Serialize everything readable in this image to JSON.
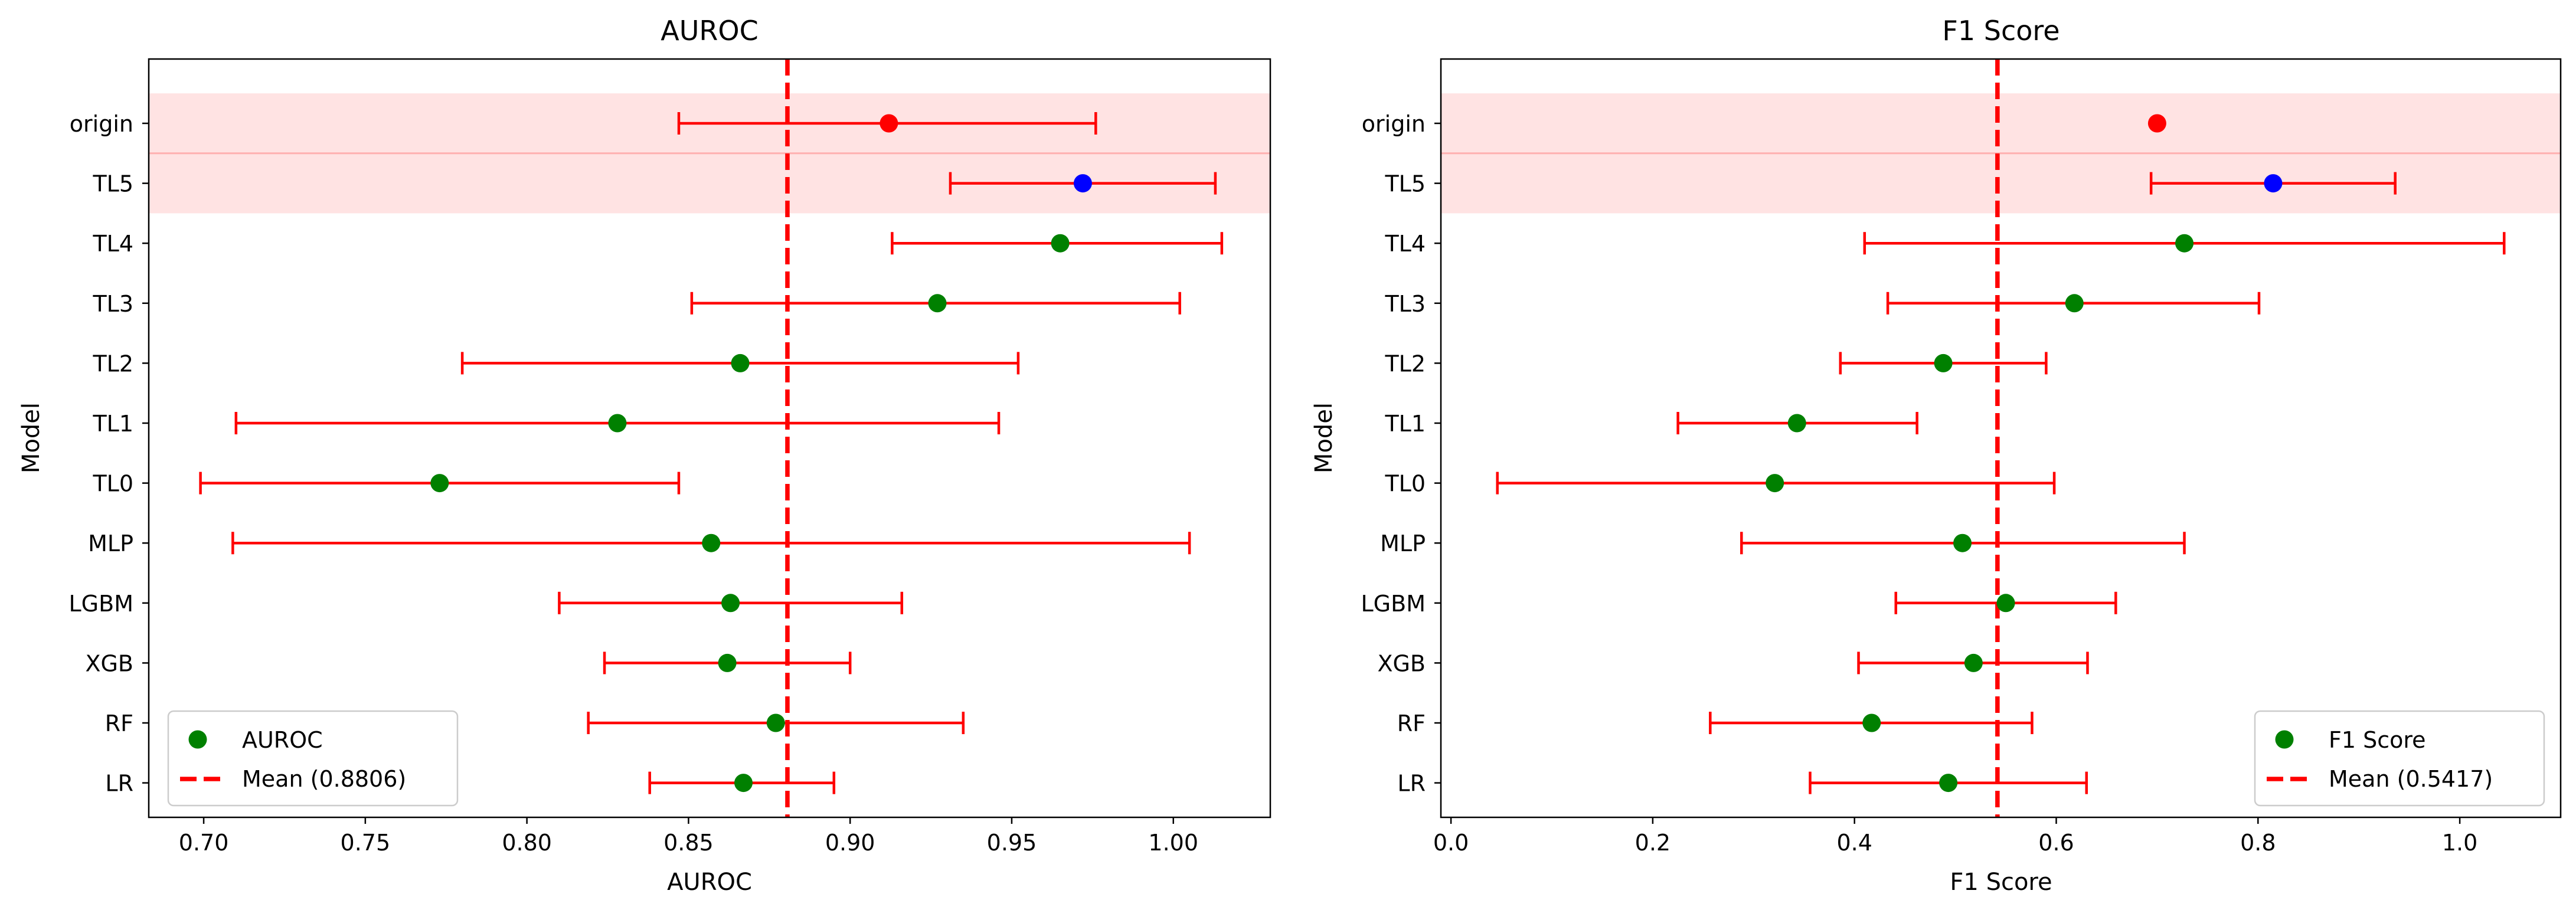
{
  "chart_data": [
    {
      "type": "forest",
      "title": "AUROC",
      "xlabel": "AUROC",
      "ylabel": "Model",
      "xlim": [
        0.683,
        1.03
      ],
      "xticks": [
        0.7,
        0.75,
        0.8,
        0.85,
        0.9,
        0.95,
        1.0
      ],
      "xtick_labels": [
        "0.70",
        "0.75",
        "0.80",
        "0.85",
        "0.90",
        "0.95",
        "1.00"
      ],
      "categories": [
        "origin",
        "TL5",
        "TL4",
        "TL3",
        "TL2",
        "TL1",
        "TL0",
        "MLP",
        "LGBM",
        "XGB",
        "RF",
        "LR"
      ],
      "values": [
        0.912,
        0.972,
        0.965,
        0.927,
        0.866,
        0.828,
        0.773,
        0.857,
        0.863,
        0.862,
        0.877,
        0.867
      ],
      "ci_low": [
        0.847,
        0.931,
        0.913,
        0.851,
        0.78,
        0.71,
        0.699,
        0.709,
        0.81,
        0.824,
        0.819,
        0.838
      ],
      "ci_high": [
        0.976,
        1.013,
        1.015,
        1.002,
        0.952,
        0.946,
        0.847,
        1.005,
        0.916,
        0.9,
        0.935,
        0.895
      ],
      "point_colors": [
        "#ff0000",
        "#0000ff",
        "#008000",
        "#008000",
        "#008000",
        "#008000",
        "#008000",
        "#008000",
        "#008000",
        "#008000",
        "#008000",
        "#008000"
      ],
      "mean": 0.8806,
      "highlight_rows": [
        "origin",
        "TL5"
      ],
      "legend": {
        "position": "lower-left",
        "points_label": "AUROC",
        "mean_label": "Mean (0.8806)"
      }
    },
    {
      "type": "forest",
      "title": "F1 Score",
      "xlabel": "F1 Score",
      "ylabel": "Model",
      "xlim": [
        -0.01,
        1.1
      ],
      "xticks": [
        0.0,
        0.2,
        0.4,
        0.6,
        0.8,
        1.0
      ],
      "xtick_labels": [
        "0.0",
        "0.2",
        "0.4",
        "0.6",
        "0.8",
        "1.0"
      ],
      "categories": [
        "origin",
        "TL5",
        "TL4",
        "TL3",
        "TL2",
        "TL1",
        "TL0",
        "MLP",
        "LGBM",
        "XGB",
        "RF",
        "LR"
      ],
      "values": [
        0.7,
        0.815,
        0.727,
        0.618,
        0.488,
        0.343,
        0.321,
        0.507,
        0.55,
        0.518,
        0.417,
        0.493
      ],
      "ci_low": [
        null,
        0.694,
        0.41,
        0.433,
        0.386,
        0.225,
        0.046,
        0.288,
        0.441,
        0.404,
        0.257,
        0.356
      ],
      "ci_high": [
        null,
        0.936,
        1.044,
        0.801,
        0.59,
        0.462,
        0.598,
        0.727,
        0.659,
        0.631,
        0.576,
        0.63
      ],
      "point_colors": [
        "#ff0000",
        "#0000ff",
        "#008000",
        "#008000",
        "#008000",
        "#008000",
        "#008000",
        "#008000",
        "#008000",
        "#008000",
        "#008000",
        "#008000"
      ],
      "mean": 0.5417,
      "highlight_rows": [
        "origin",
        "TL5"
      ],
      "legend": {
        "position": "lower-right",
        "points_label": "F1 Score",
        "mean_label": "Mean (0.5417)"
      }
    }
  ],
  "colors": {
    "errorbar": "#ff0000",
    "mean_line": "#ff0000",
    "highlight_fill": "#ffe3e3",
    "highlight_edge": "#ffb0b0",
    "legend_point": "#008000"
  }
}
